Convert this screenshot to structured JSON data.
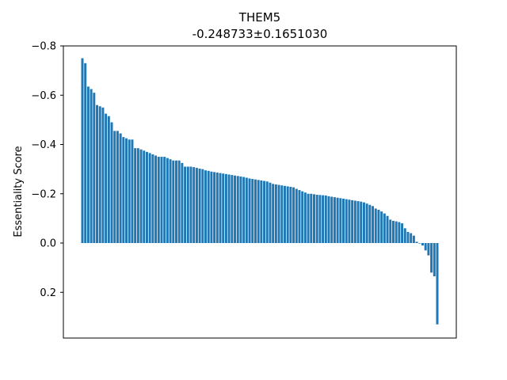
{
  "chart_data": {
    "type": "bar",
    "title": "THEM5",
    "subtitle": "-0.248733±0.1651030",
    "xlabel": "",
    "ylabel": "Essentiality Score",
    "ylim": [
      0.38,
      -0.8
    ],
    "yticks": [
      -0.8,
      -0.6,
      -0.4,
      -0.2,
      0.0,
      0.2
    ],
    "ytick_labels": [
      "−0.8",
      "−0.6",
      "−0.4",
      "−0.2",
      "0.0",
      "0.2"
    ],
    "grid": false,
    "bar_color": "#1f77b4",
    "values": [
      -0.75,
      -0.73,
      -0.635,
      -0.625,
      -0.61,
      -0.56,
      -0.555,
      -0.55,
      -0.525,
      -0.515,
      -0.49,
      -0.455,
      -0.455,
      -0.445,
      -0.43,
      -0.425,
      -0.42,
      -0.42,
      -0.385,
      -0.385,
      -0.38,
      -0.375,
      -0.37,
      -0.365,
      -0.36,
      -0.355,
      -0.35,
      -0.35,
      -0.35,
      -0.345,
      -0.34,
      -0.335,
      -0.335,
      -0.335,
      -0.325,
      -0.31,
      -0.31,
      -0.31,
      -0.308,
      -0.305,
      -0.302,
      -0.3,
      -0.295,
      -0.293,
      -0.29,
      -0.288,
      -0.286,
      -0.284,
      -0.282,
      -0.28,
      -0.278,
      -0.276,
      -0.274,
      -0.272,
      -0.27,
      -0.268,
      -0.265,
      -0.262,
      -0.26,
      -0.258,
      -0.256,
      -0.254,
      -0.252,
      -0.25,
      -0.245,
      -0.24,
      -0.238,
      -0.236,
      -0.234,
      -0.232,
      -0.23,
      -0.228,
      -0.226,
      -0.22,
      -0.215,
      -0.21,
      -0.205,
      -0.2,
      -0.2,
      -0.198,
      -0.196,
      -0.195,
      -0.194,
      -0.193,
      -0.19,
      -0.188,
      -0.186,
      -0.184,
      -0.182,
      -0.18,
      -0.178,
      -0.176,
      -0.174,
      -0.172,
      -0.17,
      -0.168,
      -0.165,
      -0.16,
      -0.155,
      -0.15,
      -0.14,
      -0.135,
      -0.128,
      -0.12,
      -0.11,
      -0.095,
      -0.09,
      -0.088,
      -0.085,
      -0.08,
      -0.06,
      -0.045,
      -0.04,
      -0.03,
      -0.005,
      0.0,
      0.01,
      0.03,
      0.05,
      0.12,
      0.135,
      0.33
    ]
  }
}
